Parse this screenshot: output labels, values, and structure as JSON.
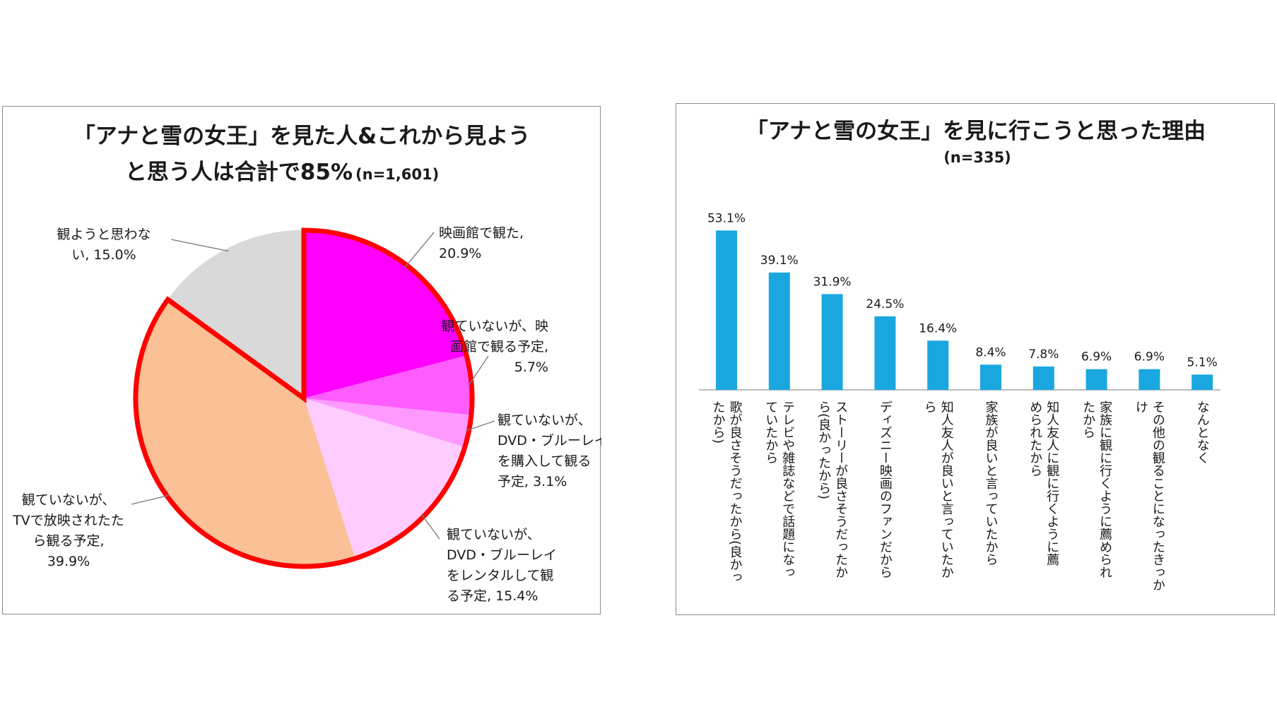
{
  "chart_data": [
    {
      "type": "pie",
      "title_line1": "「アナと雪の女王」を見た人&これから見よう",
      "title_line2": "と思う人は合計で85%",
      "title_note": "(n=1,601)",
      "highlight_total": "85%",
      "slices": [
        {
          "name": "映画館で観た",
          "value": 20.9,
          "color": "#ff00ff",
          "label_lines": [
            "映画館で観た,",
            "20.9%"
          ]
        },
        {
          "name": "観ていないが、映画館で観る予定",
          "value": 5.7,
          "color": "#ff5cff",
          "label_lines": [
            "観ていないが、映",
            "画館で観る予定,",
            "5.7%"
          ]
        },
        {
          "name": "観ていないが、DVD・ブルーレイを購入して観る予定",
          "value": 3.1,
          "color": "#ff99ff",
          "label_lines": [
            "観ていないが、",
            "DVD・ブルーレイ",
            "を購入して観る",
            "予定, 3.1%"
          ]
        },
        {
          "name": "観ていないが、DVD・ブルーレイをレンタルして観る予定",
          "value": 15.4,
          "color": "#ffccff",
          "label_lines": [
            "観ていないが、",
            "DVD・ブルーレイ",
            "をレンタルして観",
            "る予定, 15.4%"
          ]
        },
        {
          "name": "観ていないが、TVで放映されたら観る予定",
          "value": 39.9,
          "color": "#f9c195",
          "label_lines": [
            "観ていないが、",
            "TVで放映されたた",
            "ら観る予定,",
            "39.9%"
          ]
        },
        {
          "name": "観ようと思わない",
          "value": 15.0,
          "color": "#d9d9d9",
          "label_lines": [
            "観ようと思わな",
            "い, 15.0%"
          ]
        }
      ],
      "highlight_color": "#ff0000"
    },
    {
      "type": "bar",
      "title": "「アナと雪の女王」を見に行こうと思った理由",
      "subtitle": "(n=335)",
      "bar_color": "#1aa7e0",
      "ylim": [
        0,
        60
      ],
      "categories": [
        [
          "歌が良さそうだったから(良かっ",
          "たから)"
        ],
        [
          "テレビや雑誌などで話題になっ",
          "ていたから"
        ],
        [
          "ストーリーが良さそうだったか",
          "ら(良かったから)"
        ],
        [
          "ディズニー映画のファンだから"
        ],
        [
          "知人友人が良いと言っていたか",
          "ら"
        ],
        [
          "家族が良いと言っていたから"
        ],
        [
          "知人友人に観に行くように薦",
          "められたから"
        ],
        [
          "家族に観に行くように薦められ",
          "たから"
        ],
        [
          "その他の観ることになったきっか",
          "け"
        ],
        [
          "なんとなく"
        ]
      ],
      "values": [
        53.1,
        39.1,
        31.9,
        24.5,
        16.4,
        8.4,
        7.8,
        6.9,
        6.9,
        5.1
      ],
      "value_labels": [
        "53.1%",
        "39.1%",
        "31.9%",
        "24.5%",
        "16.4%",
        "8.4%",
        "7.8%",
        "6.9%",
        "6.9%",
        "5.1%"
      ]
    }
  ]
}
